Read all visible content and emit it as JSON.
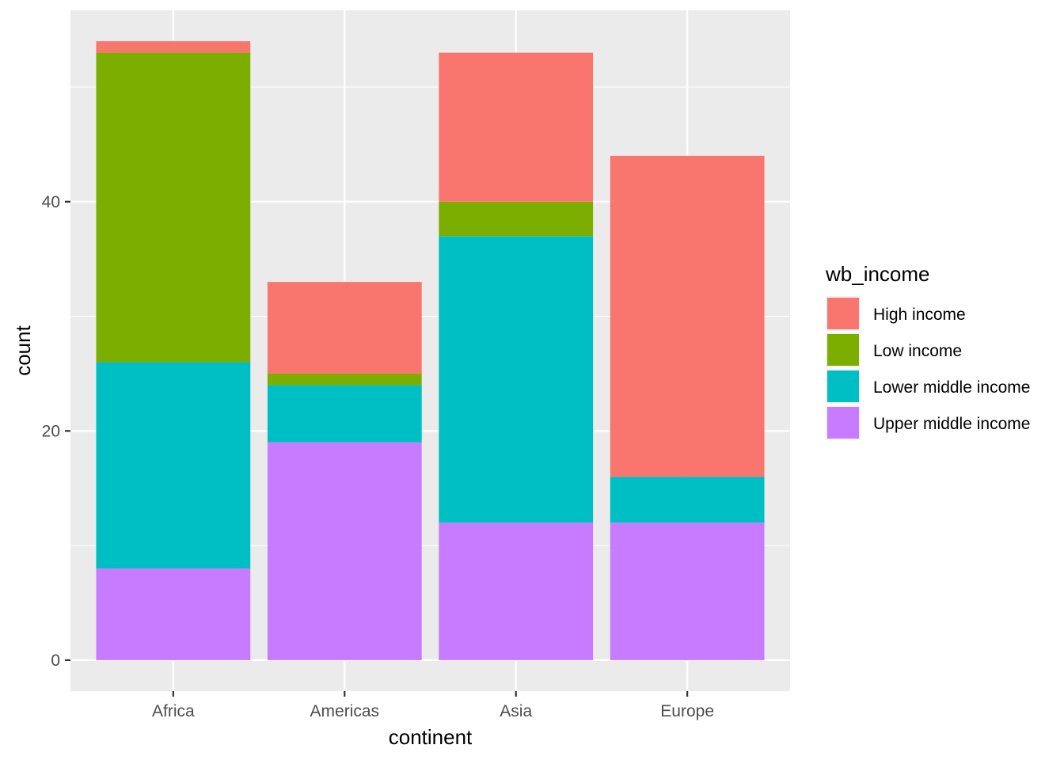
{
  "chart_data": {
    "type": "bar",
    "stacked": true,
    "categories": [
      "Africa",
      "Americas",
      "Asia",
      "Europe"
    ],
    "series": [
      {
        "name": "High income",
        "color": "#F8766D",
        "values": [
          1,
          8,
          13,
          28
        ]
      },
      {
        "name": "Low income",
        "color": "#7CAE00",
        "values": [
          27,
          1,
          3,
          0
        ]
      },
      {
        "name": "Lower middle income",
        "color": "#00BFC4",
        "values": [
          18,
          5,
          25,
          4
        ]
      },
      {
        "name": "Upper middle income",
        "color": "#C77CFF",
        "values": [
          8,
          19,
          12,
          12
        ]
      }
    ],
    "stack_order_bottom_to_top": [
      "Upper middle income",
      "Lower middle income",
      "Low income",
      "High income"
    ],
    "xlabel": "continent",
    "ylabel": "count",
    "ylim": [
      -2.7,
      56.7
    ],
    "yticks": [
      0,
      20,
      40
    ],
    "grid": true,
    "legend": {
      "title": "wb_income",
      "placement": "right"
    },
    "panel_color": "#EBEBEB",
    "grid_color": "#FFFFFF"
  }
}
